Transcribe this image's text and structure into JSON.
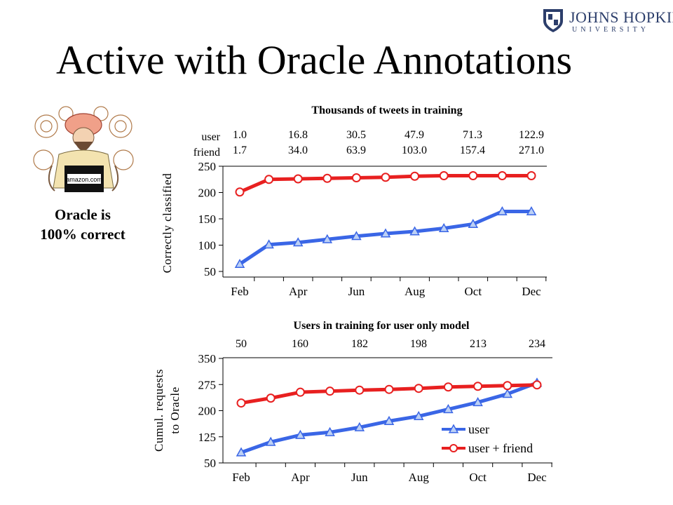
{
  "slide": {
    "title": "Active with Oracle Annotations",
    "logo_name": "JOHNS HOPKINS",
    "logo_sub": "UNIVERSITY",
    "oracle_caption_line1": "Oracle is",
    "oracle_caption_line2": "100% correct",
    "oracle_badge": "amazon.com",
    "colors": {
      "user": "#3a66e6",
      "friend": "#e82020"
    }
  },
  "chart_data": [
    {
      "type": "line",
      "title": "Thousands of tweets in training",
      "ylabel": "Correctly classified",
      "xlabel": "",
      "x_tick_labels": [
        "Feb",
        "Apr",
        "Jun",
        "Aug",
        "Oct",
        "Dec"
      ],
      "y_ticks": [
        50,
        100,
        150,
        200,
        250
      ],
      "ylim": [
        50,
        250
      ],
      "grid": false,
      "top_row_labels": [
        "user",
        "friend"
      ],
      "top_values_user": [
        "1.0",
        "16.8",
        "30.5",
        "47.9",
        "71.3",
        "122.9"
      ],
      "top_values_friend": [
        "1.7",
        "34.0",
        "63.9",
        "103.0",
        "157.4",
        "271.0"
      ],
      "series": [
        {
          "name": "user",
          "marker": "triangle",
          "values": [
            64,
            101,
            105,
            111,
            117,
            122,
            126,
            132,
            140,
            164,
            164
          ]
        },
        {
          "name": "user + friend",
          "marker": "circle",
          "values": [
            201,
            225,
            226,
            227,
            228,
            229,
            231,
            232,
            232,
            232,
            232
          ]
        }
      ]
    },
    {
      "type": "line",
      "title": "Users in training for user only model",
      "ylabel": "Cumul. requests to Oracle",
      "ylabel_line1": "Cumul. requests",
      "ylabel_line2": "to Oracle",
      "xlabel": "",
      "x_tick_labels": [
        "Feb",
        "Apr",
        "Jun",
        "Aug",
        "Oct",
        "Dec"
      ],
      "y_ticks": [
        50,
        125,
        200,
        275,
        350
      ],
      "ylim": [
        50,
        350
      ],
      "grid": false,
      "top_values": [
        "50",
        "160",
        "182",
        "198",
        "213",
        "234"
      ],
      "legend_placement": "bottom-right",
      "series": [
        {
          "name": "user",
          "marker": "triangle",
          "values": [
            80,
            110,
            130,
            138,
            152,
            170,
            184,
            204,
            224,
            248,
            280
          ]
        },
        {
          "name": "user + friend",
          "marker": "circle",
          "values": [
            222,
            236,
            253,
            256,
            259,
            261,
            264,
            268,
            270,
            272,
            274
          ]
        }
      ]
    }
  ]
}
